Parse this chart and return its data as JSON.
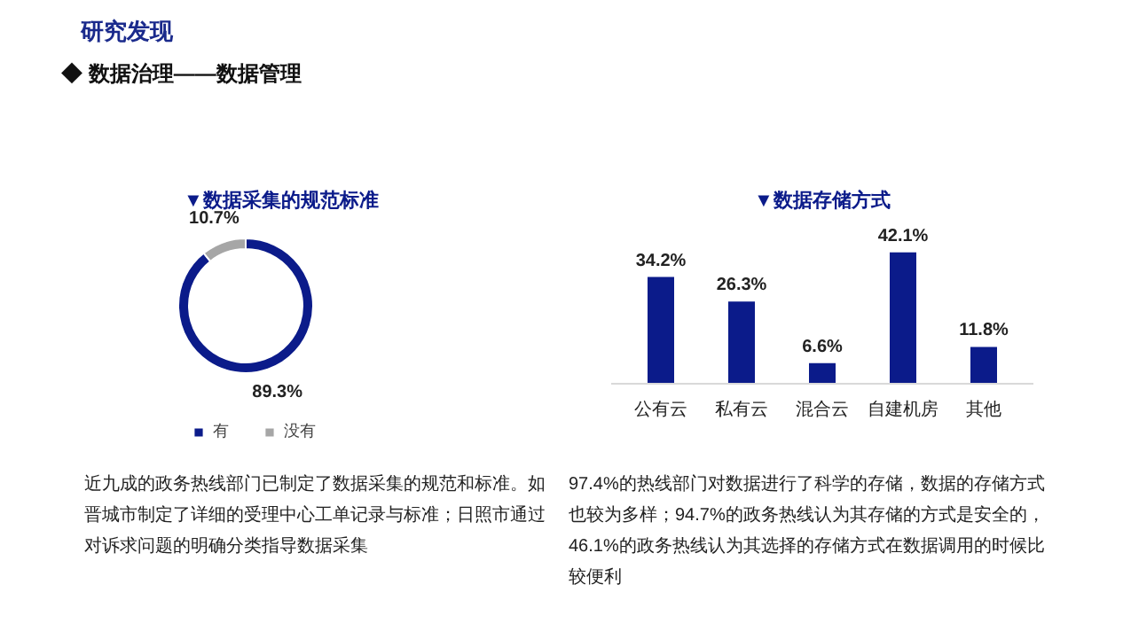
{
  "chart_data": [
    {
      "type": "donut",
      "title": "▼数据采集的规范标准",
      "categories": [
        "有",
        "没有"
      ],
      "values": [
        89.3,
        10.7
      ],
      "colors": [
        "#0b1b8a",
        "#a6a6a6"
      ],
      "value_labels": [
        "89.3%",
        "10.7%"
      ],
      "legend": "bottom",
      "annotations": [
        "研究发现",
        "◆ 数据治理——数据管理",
        "近九成的政务热线部门已制定了数据采集的规范和标准。如",
        "晋城市制定了详细的受理中心工单记录与标准；日照市通过",
        "对诉求问题的明确分类指导数据采集"
      ]
    },
    {
      "type": "bar",
      "title": "▼数据存储方式",
      "categories": [
        "公有云",
        "私有云",
        "混合云",
        "自建机房",
        "其他"
      ],
      "values": [
        34.2,
        26.3,
        6.6,
        42.1,
        11.8
      ],
      "color": "#0b1b8a",
      "value_labels": [
        "34.2%",
        "26.3%",
        "6.6%",
        "42.1%",
        "11.8%"
      ],
      "annotations": [
        "97.4%的热线部门对数据进行了科学的存储，数据的存储方式",
        "也较为多样；94.7%的政务热线认为其存储的方式是安全的，",
        "46.1%的政务热线认为其选择的存储方式在数据调用的时候比",
        "较便利"
      ]
    }
  ]
}
